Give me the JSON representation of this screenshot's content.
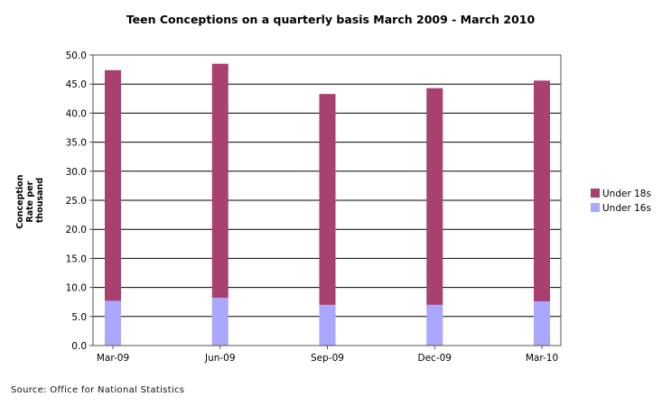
{
  "chart_data": {
    "type": "bar",
    "stacked": true,
    "title": "Teen Conceptions on a quarterly basis March 2009 - March 2010",
    "ylabel": [
      "Conception",
      "Rate per",
      "thousand"
    ],
    "xlabel": "",
    "categories": [
      "Mar-09",
      "Jun-09",
      "Sep-09",
      "Dec-09",
      "Mar-10"
    ],
    "ylim": [
      0,
      50
    ],
    "yticks": [
      "0.0",
      "5.0",
      "10.0",
      "15.0",
      "20.0",
      "25.0",
      "30.0",
      "35.0",
      "40.0",
      "45.0",
      "50.0"
    ],
    "grid": true,
    "legend_position": "right",
    "series": [
      {
        "name": "Under 16s",
        "color": "#a9a7ff",
        "values": [
          7.7,
          8.2,
          7.0,
          7.0,
          7.6
        ]
      },
      {
        "name": "Under 18s",
        "color": "#a8416f",
        "totals": [
          47.4,
          48.5,
          43.3,
          44.3,
          45.6
        ]
      }
    ]
  },
  "footer": {
    "source": "Source: Office for National Statistics"
  }
}
